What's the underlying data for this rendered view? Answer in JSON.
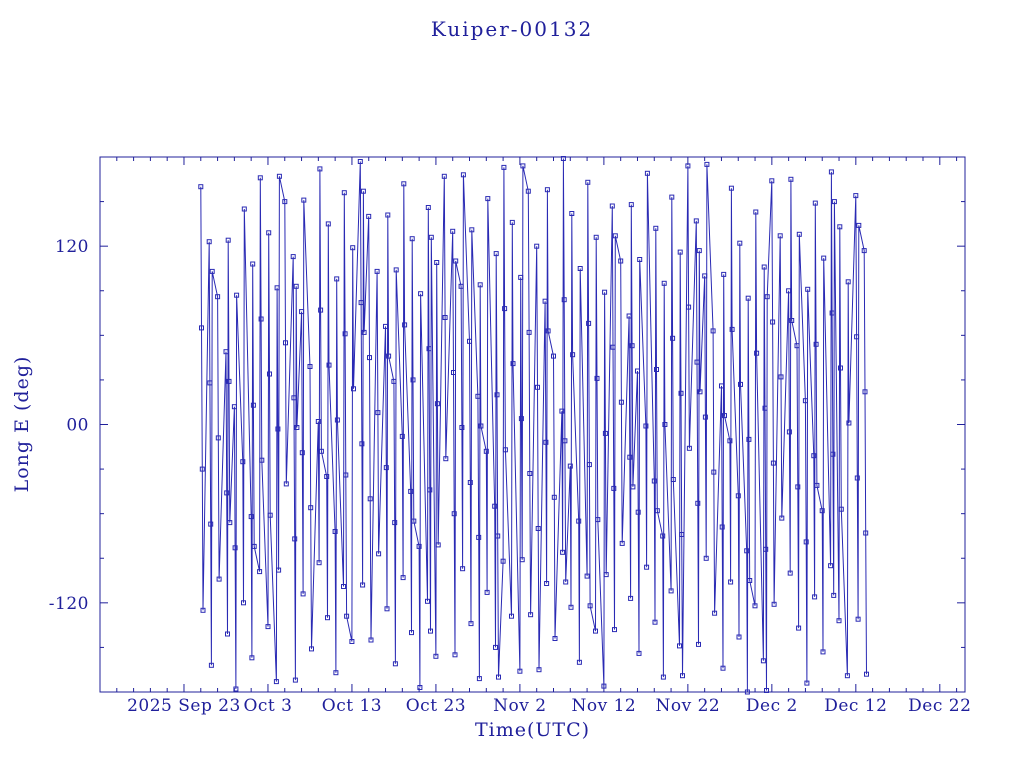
{
  "colors": {
    "background": "#ffffff",
    "text": "#20209b",
    "frame": "#20209b",
    "line": "#2a2ab4",
    "marker": "#2a2ab4"
  },
  "chart_data": {
    "type": "line",
    "title": "Kuiper-00132",
    "xlabel": "Time(UTC)",
    "ylabel": "Long E (deg)",
    "grid": false,
    "legend": "none",
    "marker": "open-square",
    "marker_size": 4,
    "x_axis": {
      "domain": [
        0,
        103
      ],
      "minor_tick_step": 2,
      "ticks": [
        {
          "pos": 10,
          "label": "2025 Sep 23"
        },
        {
          "pos": 20,
          "label": "Oct 3"
        },
        {
          "pos": 30,
          "label": "Oct 13"
        },
        {
          "pos": 40,
          "label": "Oct 23"
        },
        {
          "pos": 50,
          "label": "Nov 2"
        },
        {
          "pos": 60,
          "label": "Nov 12"
        },
        {
          "pos": 70,
          "label": "Nov 22"
        },
        {
          "pos": 80,
          "label": "Dec 2"
        },
        {
          "pos": 90,
          "label": "Dec 12"
        },
        {
          "pos": 100,
          "label": "Dec 22"
        }
      ]
    },
    "y_axis": {
      "domain": [
        -180,
        180
      ],
      "minor_tick_step": 30,
      "ticks": [
        {
          "pos": 120,
          "label": "120"
        },
        {
          "pos": 0,
          "label": "00"
        },
        {
          "pos": -120,
          "label": "-120"
        }
      ]
    },
    "points": [
      [
        12,
        160
      ],
      [
        12.09,
        65
      ],
      [
        12.18,
        -30
      ],
      [
        12.27,
        -125
      ],
      [
        13,
        123
      ],
      [
        13.09,
        28
      ],
      [
        13.18,
        -67
      ],
      [
        13.27,
        -162
      ],
      [
        13.36,
        103
      ],
      [
        14,
        86
      ],
      [
        14.09,
        -9
      ],
      [
        14.18,
        -104
      ],
      [
        15,
        49
      ],
      [
        15.09,
        -46
      ],
      [
        15.18,
        -141
      ],
      [
        15.27,
        124
      ],
      [
        15.36,
        29
      ],
      [
        15.45,
        -66
      ],
      [
        16,
        12
      ],
      [
        16.09,
        -83
      ],
      [
        16.18,
        -178
      ],
      [
        16.27,
        87
      ],
      [
        17,
        -25
      ],
      [
        17.09,
        -120
      ],
      [
        17.18,
        145
      ],
      [
        18,
        -62
      ],
      [
        18.09,
        -157
      ],
      [
        18.18,
        108
      ],
      [
        18.27,
        13
      ],
      [
        18.36,
        -82
      ],
      [
        19,
        -99
      ],
      [
        19.09,
        166
      ],
      [
        19.18,
        71
      ],
      [
        19.27,
        -24
      ],
      [
        20,
        -136
      ],
      [
        20.09,
        129
      ],
      [
        20.18,
        34
      ],
      [
        20.27,
        -61
      ],
      [
        21,
        -173
      ],
      [
        21.09,
        92
      ],
      [
        21.18,
        -3
      ],
      [
        21.27,
        -98
      ],
      [
        21.36,
        167
      ],
      [
        22,
        150
      ],
      [
        22.09,
        55
      ],
      [
        22.18,
        -40
      ],
      [
        23,
        113
      ],
      [
        23.09,
        18
      ],
      [
        23.18,
        -77
      ],
      [
        23.27,
        -172
      ],
      [
        23.36,
        93
      ],
      [
        23.45,
        -2
      ],
      [
        24,
        76
      ],
      [
        24.09,
        -19
      ],
      [
        24.18,
        -114
      ],
      [
        24.27,
        151
      ],
      [
        25,
        39
      ],
      [
        25.09,
        -56
      ],
      [
        25.18,
        -151
      ],
      [
        26,
        2
      ],
      [
        26.09,
        -93
      ],
      [
        26.18,
        172
      ],
      [
        26.27,
        77
      ],
      [
        26.36,
        -18
      ],
      [
        27,
        -35
      ],
      [
        27.09,
        -130
      ],
      [
        27.18,
        135
      ],
      [
        27.27,
        40
      ],
      [
        28,
        -72
      ],
      [
        28.09,
        -167
      ],
      [
        28.18,
        98
      ],
      [
        28.27,
        3
      ],
      [
        29,
        -109
      ],
      [
        29.09,
        156
      ],
      [
        29.18,
        61
      ],
      [
        29.27,
        -34
      ],
      [
        29.36,
        -129
      ],
      [
        30,
        -146
      ],
      [
        30.09,
        119
      ],
      [
        30.18,
        24
      ],
      [
        31,
        177
      ],
      [
        31.09,
        82
      ],
      [
        31.18,
        -13
      ],
      [
        31.27,
        -108
      ],
      [
        31.36,
        157
      ],
      [
        31.45,
        62
      ],
      [
        32,
        140
      ],
      [
        32.09,
        45
      ],
      [
        32.18,
        -50
      ],
      [
        32.27,
        -145
      ],
      [
        33,
        103
      ],
      [
        33.09,
        8
      ],
      [
        33.18,
        -87
      ],
      [
        34,
        66
      ],
      [
        34.09,
        -29
      ],
      [
        34.18,
        -124
      ],
      [
        34.27,
        141
      ],
      [
        34.36,
        46
      ],
      [
        35,
        29
      ],
      [
        35.09,
        -66
      ],
      [
        35.18,
        -161
      ],
      [
        35.27,
        104
      ],
      [
        36,
        -8
      ],
      [
        36.09,
        -103
      ],
      [
        36.18,
        162
      ],
      [
        36.27,
        67
      ],
      [
        37,
        -45
      ],
      [
        37.09,
        -140
      ],
      [
        37.18,
        125
      ],
      [
        37.27,
        30
      ],
      [
        37.36,
        -65
      ],
      [
        38,
        -82
      ],
      [
        38.09,
        -177
      ],
      [
        38.18,
        88
      ],
      [
        39,
        -119
      ],
      [
        39.09,
        146
      ],
      [
        39.18,
        51
      ],
      [
        39.27,
        -44
      ],
      [
        39.36,
        -139
      ],
      [
        39.45,
        126
      ],
      [
        40,
        -156
      ],
      [
        40.09,
        109
      ],
      [
        40.18,
        14
      ],
      [
        40.27,
        -81
      ],
      [
        41,
        167
      ],
      [
        41.09,
        72
      ],
      [
        41.18,
        -23
      ],
      [
        42,
        130
      ],
      [
        42.09,
        35
      ],
      [
        42.18,
        -60
      ],
      [
        42.27,
        -155
      ],
      [
        42.36,
        110
      ],
      [
        43,
        93
      ],
      [
        43.09,
        -2
      ],
      [
        43.18,
        -97
      ],
      [
        43.27,
        168
      ],
      [
        44,
        56
      ],
      [
        44.09,
        -39
      ],
      [
        44.18,
        -134
      ],
      [
        44.27,
        131
      ],
      [
        45,
        19
      ],
      [
        45.09,
        -76
      ],
      [
        45.18,
        -171
      ],
      [
        45.27,
        94
      ],
      [
        45.36,
        -1
      ],
      [
        46,
        -18
      ],
      [
        46.09,
        -113
      ],
      [
        46.18,
        152
      ],
      [
        47,
        -55
      ],
      [
        47.09,
        -150
      ],
      [
        47.18,
        115
      ],
      [
        47.27,
        20
      ],
      [
        47.36,
        -75
      ],
      [
        47.45,
        -170
      ],
      [
        48,
        -92
      ],
      [
        48.09,
        173
      ],
      [
        48.18,
        78
      ],
      [
        48.27,
        -17
      ],
      [
        49,
        -129
      ],
      [
        49.09,
        136
      ],
      [
        49.18,
        41
      ],
      [
        50,
        -166
      ],
      [
        50.09,
        99
      ],
      [
        50.18,
        4
      ],
      [
        50.27,
        -91
      ],
      [
        50.36,
        174
      ],
      [
        51,
        157
      ],
      [
        51.09,
        62
      ],
      [
        51.18,
        -33
      ],
      [
        51.27,
        -128
      ],
      [
        52,
        120
      ],
      [
        52.09,
        25
      ],
      [
        52.18,
        -70
      ],
      [
        52.27,
        -165
      ],
      [
        53,
        83
      ],
      [
        53.09,
        -12
      ],
      [
        53.18,
        -107
      ],
      [
        53.27,
        158
      ],
      [
        53.36,
        63
      ],
      [
        54,
        46
      ],
      [
        54.09,
        -49
      ],
      [
        54.18,
        -144
      ],
      [
        55,
        9
      ],
      [
        55.09,
        -86
      ],
      [
        55.18,
        179
      ],
      [
        55.27,
        84
      ],
      [
        55.36,
        -11
      ],
      [
        55.45,
        -106
      ],
      [
        56,
        -28
      ],
      [
        56.09,
        -123
      ],
      [
        56.18,
        142
      ],
      [
        56.27,
        47
      ],
      [
        57,
        -65
      ],
      [
        57.09,
        -160
      ],
      [
        57.18,
        105
      ],
      [
        58,
        -102
      ],
      [
        58.09,
        163
      ],
      [
        58.18,
        68
      ],
      [
        58.27,
        -27
      ],
      [
        58.36,
        -122
      ],
      [
        59,
        -139
      ],
      [
        59.09,
        126
      ],
      [
        59.18,
        31
      ],
      [
        59.27,
        -64
      ],
      [
        60,
        -176
      ],
      [
        60.09,
        89
      ],
      [
        60.18,
        -6
      ],
      [
        60.27,
        -101
      ],
      [
        61,
        147
      ],
      [
        61.09,
        52
      ],
      [
        61.18,
        -43
      ],
      [
        61.27,
        -138
      ],
      [
        61.36,
        127
      ],
      [
        62,
        110
      ],
      [
        62.09,
        15
      ],
      [
        62.18,
        -80
      ],
      [
        63,
        73
      ],
      [
        63.09,
        -22
      ],
      [
        63.18,
        -117
      ],
      [
        63.27,
        148
      ],
      [
        63.36,
        53
      ],
      [
        63.45,
        -42
      ],
      [
        64,
        36
      ],
      [
        64.09,
        -59
      ],
      [
        64.18,
        -154
      ],
      [
        64.27,
        111
      ],
      [
        65,
        -1
      ],
      [
        65.09,
        -96
      ],
      [
        65.18,
        169
      ],
      [
        66,
        -38
      ],
      [
        66.09,
        -133
      ],
      [
        66.18,
        132
      ],
      [
        66.27,
        37
      ],
      [
        66.36,
        -58
      ],
      [
        67,
        -75
      ],
      [
        67.09,
        -170
      ],
      [
        67.18,
        95
      ],
      [
        67.27,
        0
      ],
      [
        68,
        -112
      ],
      [
        68.09,
        153
      ],
      [
        68.18,
        58
      ],
      [
        68.27,
        -37
      ],
      [
        69,
        -149
      ],
      [
        69.09,
        116
      ],
      [
        69.18,
        21
      ],
      [
        69.27,
        -74
      ],
      [
        69.36,
        -169
      ],
      [
        70,
        174
      ],
      [
        70.09,
        79
      ],
      [
        70.18,
        -16
      ],
      [
        71,
        137
      ],
      [
        71.09,
        42
      ],
      [
        71.18,
        -53
      ],
      [
        71.27,
        -148
      ],
      [
        71.36,
        117
      ],
      [
        71.45,
        22
      ],
      [
        72,
        100
      ],
      [
        72.09,
        5
      ],
      [
        72.18,
        -90
      ],
      [
        72.27,
        175
      ],
      [
        73,
        63
      ],
      [
        73.09,
        -32
      ],
      [
        73.18,
        -127
      ],
      [
        74,
        26
      ],
      [
        74.09,
        -69
      ],
      [
        74.18,
        -164
      ],
      [
        74.27,
        101
      ],
      [
        74.36,
        6
      ],
      [
        75,
        -11
      ],
      [
        75.09,
        -106
      ],
      [
        75.18,
        159
      ],
      [
        75.27,
        64
      ],
      [
        76,
        -48
      ],
      [
        76.09,
        -143
      ],
      [
        76.18,
        122
      ],
      [
        76.27,
        27
      ],
      [
        77,
        -85
      ],
      [
        77.09,
        -180
      ],
      [
        77.18,
        85
      ],
      [
        77.27,
        -10
      ],
      [
        77.36,
        -105
      ],
      [
        78,
        -122
      ],
      [
        78.09,
        143
      ],
      [
        78.18,
        48
      ],
      [
        79,
        -159
      ],
      [
        79.09,
        106
      ],
      [
        79.18,
        11
      ],
      [
        79.27,
        -84
      ],
      [
        79.36,
        -179
      ],
      [
        79.45,
        86
      ],
      [
        80,
        164
      ],
      [
        80.09,
        69
      ],
      [
        80.18,
        -26
      ],
      [
        80.27,
        -121
      ],
      [
        81,
        127
      ],
      [
        81.09,
        32
      ],
      [
        81.18,
        -63
      ],
      [
        82,
        90
      ],
      [
        82.09,
        -5
      ],
      [
        82.18,
        -100
      ],
      [
        82.27,
        165
      ],
      [
        82.36,
        70
      ],
      [
        83,
        53
      ],
      [
        83.09,
        -42
      ],
      [
        83.18,
        -137
      ],
      [
        83.27,
        128
      ],
      [
        84,
        16
      ],
      [
        84.09,
        -79
      ],
      [
        84.18,
        -174
      ],
      [
        84.27,
        91
      ],
      [
        85,
        -21
      ],
      [
        85.09,
        -116
      ],
      [
        85.18,
        149
      ],
      [
        85.27,
        54
      ],
      [
        85.36,
        -41
      ],
      [
        86,
        -58
      ],
      [
        86.09,
        -153
      ],
      [
        86.18,
        112
      ],
      [
        87,
        -95
      ],
      [
        87.09,
        170
      ],
      [
        87.18,
        75
      ],
      [
        87.27,
        -20
      ],
      [
        87.36,
        -115
      ],
      [
        87.45,
        150
      ],
      [
        88,
        -132
      ],
      [
        88.09,
        133
      ],
      [
        88.18,
        38
      ],
      [
        88.27,
        -57
      ],
      [
        89,
        -169
      ],
      [
        89.09,
        96
      ],
      [
        89.18,
        1
      ],
      [
        90,
        154
      ],
      [
        90.09,
        59
      ],
      [
        90.18,
        -36
      ],
      [
        90.27,
        -131
      ],
      [
        90.36,
        134
      ],
      [
        91,
        117
      ],
      [
        91.09,
        22
      ],
      [
        91.18,
        -73
      ],
      [
        91.27,
        -168
      ]
    ]
  }
}
